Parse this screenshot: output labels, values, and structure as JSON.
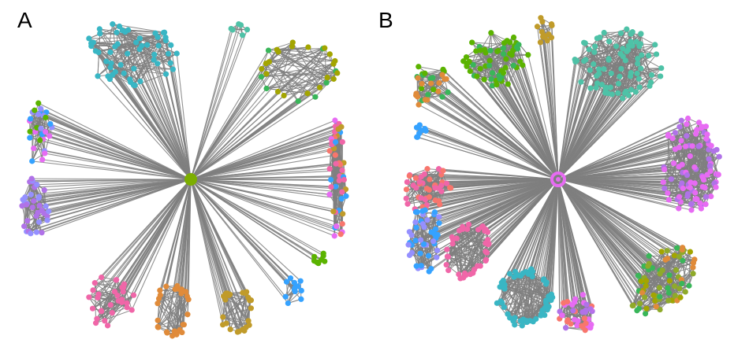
{
  "panels": [
    {
      "label": "A",
      "hub_color": "#7CAE00",
      "hub_shape": "filled-disc"
    },
    {
      "label": "B",
      "hub_color": "#E76BF3",
      "hub_shape": "ring"
    }
  ],
  "colors": {
    "edge": "#7f7f7f",
    "teal": "#00BFC4",
    "cyan": "#39B6C4",
    "aquamarine": "#4EC2A7",
    "olive": "#A3A500",
    "mustard": "#C09B2A",
    "orange": "#E08B3A",
    "pink": "#F066A8",
    "magenta": "#E76BF3",
    "purple": "#B072E8",
    "lavender": "#9590FF",
    "blue": "#35A2FF",
    "green": "#5BB300",
    "darkolive": "#8FAA2A",
    "salmon": "#F8766D",
    "mediumgreen": "#39B659"
  }
}
